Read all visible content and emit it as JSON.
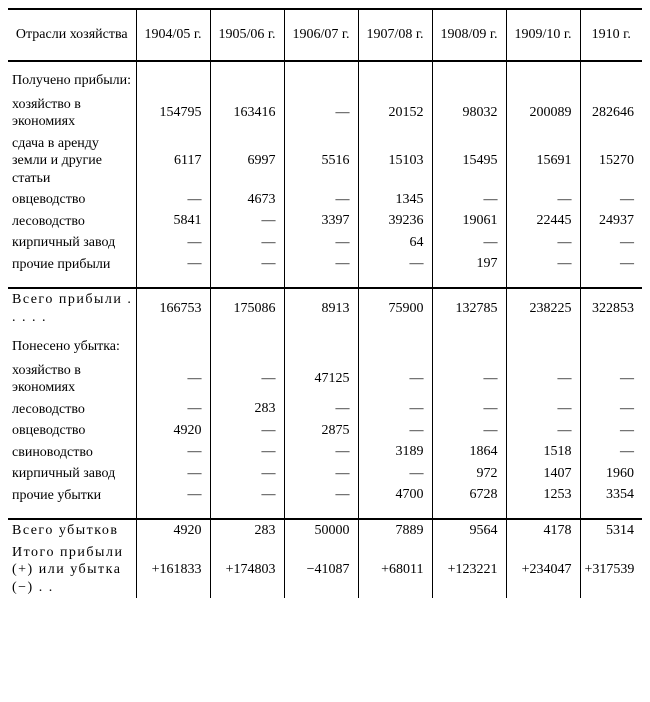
{
  "columns": {
    "header_label": "Отрасли хозяйства",
    "years": [
      "1904/05 г.",
      "1905/06 г.",
      "1906/07 г.",
      "1907/08 г.",
      "1908/09 г.",
      "1909/10 г.",
      "1910 г."
    ]
  },
  "sections": {
    "profit_header": "Получено прибыли:",
    "profit_rows": [
      {
        "label": "хозяйство в экономиях",
        "vals": [
          "154795",
          "163416",
          "—",
          "20152",
          "98032",
          "200089",
          "282646"
        ]
      },
      {
        "label": "сдача в аренду земли и другие статьи",
        "vals": [
          "6117",
          "6997",
          "5516",
          "15103",
          "15495",
          "15691",
          "15270"
        ]
      },
      {
        "label": "овцеводство",
        "vals": [
          "—",
          "4673",
          "—",
          "1345",
          "—",
          "—",
          "—"
        ]
      },
      {
        "label": "лесоводство",
        "vals": [
          "5841",
          "—",
          "3397",
          "39236",
          "19061",
          "22445",
          "24937"
        ]
      },
      {
        "label": "кирпичный завод",
        "vals": [
          "—",
          "—",
          "—",
          "64",
          "—",
          "—",
          "—"
        ]
      },
      {
        "label": "прочие прибыли",
        "vals": [
          "—",
          "—",
          "—",
          "—",
          "197",
          "—",
          "—"
        ]
      }
    ],
    "profit_total_label": "Всего прибыли . . . . .",
    "profit_total_vals": [
      "166753",
      "175086",
      "8913",
      "75900",
      "132785",
      "238225",
      "322853"
    ],
    "loss_header": "Понесено убытка:",
    "loss_rows": [
      {
        "label": "хозяйство в экономиях",
        "vals": [
          "—",
          "—",
          "47125",
          "—",
          "—",
          "—",
          "—"
        ]
      },
      {
        "label": "лесоводство",
        "vals": [
          "—",
          "283",
          "—",
          "—",
          "—",
          "—",
          "—"
        ]
      },
      {
        "label": "овцеводство",
        "vals": [
          "4920",
          "—",
          "2875",
          "—",
          "—",
          "—",
          "—"
        ]
      },
      {
        "label": "свиноводство",
        "vals": [
          "—",
          "—",
          "—",
          "3189",
          "1864",
          "1518",
          "—"
        ]
      },
      {
        "label": "кирпичный завод",
        "vals": [
          "—",
          "—",
          "—",
          "—",
          "972",
          "1407",
          "1960"
        ]
      },
      {
        "label": "прочие убытки",
        "vals": [
          "—",
          "—",
          "—",
          "4700",
          "6728",
          "1253",
          "3354"
        ]
      }
    ],
    "loss_total_label": "Всего убытков",
    "loss_total_vals": [
      "4920",
      "283",
      "50000",
      "7889",
      "9564",
      "4178",
      "5314"
    ],
    "net_label": "Итого прибыли (+) или убытка (−) . .",
    "net_vals": [
      "+161833",
      "+174803",
      "−41087",
      "+68011",
      "+123221",
      "+234047",
      "+317539"
    ]
  },
  "style": {
    "col_widths": [
      "128px",
      "74px",
      "74px",
      "74px",
      "74px",
      "74px",
      "74px",
      "62px"
    ],
    "font_size_pt": 10.5,
    "dash_char": "—",
    "border_color": "#000000",
    "background_color": "#ffffff"
  }
}
